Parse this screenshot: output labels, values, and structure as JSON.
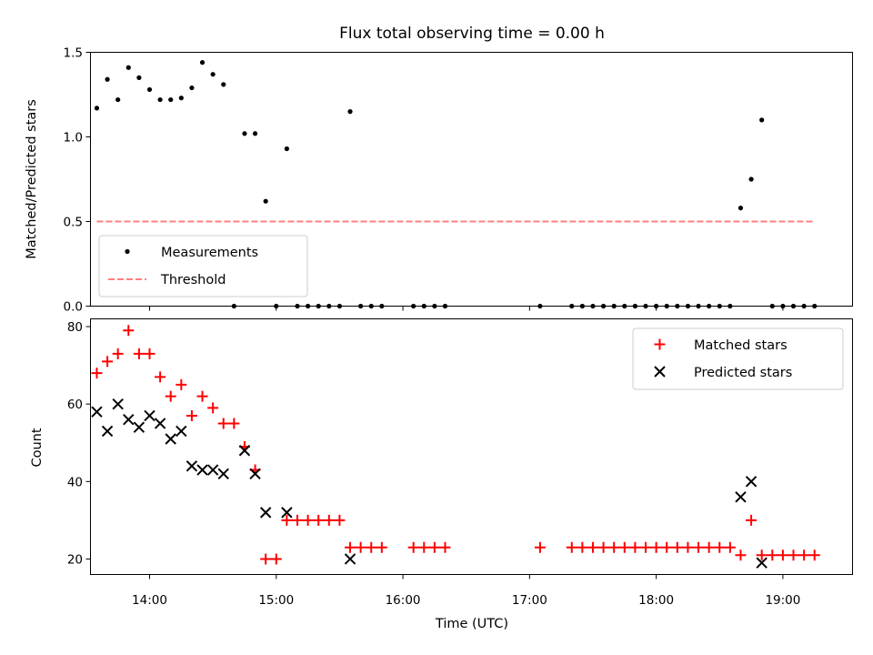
{
  "chart_data": [
    {
      "type": "scatter",
      "title": "Flux total observing time = 0.00 h",
      "xlabel": "",
      "ylabel": "Matched/Predicted stars",
      "xlim": [
        "13:32",
        "19:33"
      ],
      "ylim": [
        0,
        1.5
      ],
      "yticks": [
        0.0,
        0.5,
        1.0,
        1.5
      ],
      "ytick_labels": [
        "0.0",
        "0.5",
        "1.0",
        "1.5"
      ],
      "grid": false,
      "legend_position": "lower-left",
      "series": [
        {
          "name": "Measurements",
          "style": "points",
          "color": "#000000",
          "x": [
            "13:35",
            "13:40",
            "13:45",
            "13:50",
            "13:55",
            "14:00",
            "14:05",
            "14:10",
            "14:15",
            "14:20",
            "14:25",
            "14:30",
            "14:35",
            "14:40",
            "14:45",
            "14:50",
            "14:55",
            "15:00",
            "15:05",
            "15:10",
            "15:15",
            "15:20",
            "15:25",
            "15:30",
            "15:35",
            "15:40",
            "15:45",
            "15:50",
            "16:05",
            "16:10",
            "16:15",
            "16:20",
            "17:05",
            "17:20",
            "17:25",
            "17:30",
            "17:35",
            "17:40",
            "17:45",
            "17:50",
            "17:55",
            "18:00",
            "18:05",
            "18:10",
            "18:15",
            "18:20",
            "18:25",
            "18:30",
            "18:35",
            "18:40",
            "18:45",
            "18:50",
            "18:55",
            "19:00",
            "19:05",
            "19:10",
            "19:15"
          ],
          "y": [
            1.17,
            1.34,
            1.22,
            1.41,
            1.35,
            1.28,
            1.22,
            1.22,
            1.23,
            1.29,
            1.44,
            1.37,
            1.31,
            0.0,
            1.02,
            1.02,
            0.62,
            0.0,
            0.93,
            0.0,
            0.0,
            0.0,
            0.0,
            0.0,
            1.15,
            0.0,
            0.0,
            0.0,
            0.0,
            0.0,
            0.0,
            0.0,
            0.0,
            0.0,
            0.0,
            0.0,
            0.0,
            0.0,
            0.0,
            0.0,
            0.0,
            0.0,
            0.0,
            0.0,
            0.0,
            0.0,
            0.0,
            0.0,
            0.0,
            0.58,
            0.75,
            1.1,
            0.0,
            0.0,
            0.0,
            0.0,
            0.0
          ]
        },
        {
          "name": "Threshold",
          "style": "dashed-line",
          "color": "#ff7f7f",
          "x": [
            "13:35",
            "19:15"
          ],
          "y": [
            0.5,
            0.5
          ]
        }
      ]
    },
    {
      "type": "scatter",
      "title": "",
      "xlabel": "Time (UTC)",
      "ylabel": "Count",
      "xlim": [
        "13:32",
        "19:33"
      ],
      "ylim": [
        16,
        82
      ],
      "xticks": [
        "14:00",
        "15:00",
        "16:00",
        "17:00",
        "18:00",
        "19:00"
      ],
      "yticks": [
        20,
        40,
        60,
        80
      ],
      "ytick_labels": [
        "20",
        "40",
        "60",
        "80"
      ],
      "grid": false,
      "legend_position": "upper-right",
      "series": [
        {
          "name": "Matched stars",
          "marker": "+",
          "color": "#ff0000",
          "x": [
            "13:35",
            "13:40",
            "13:45",
            "13:50",
            "13:55",
            "14:00",
            "14:05",
            "14:10",
            "14:15",
            "14:20",
            "14:25",
            "14:30",
            "14:35",
            "14:40",
            "14:45",
            "14:50",
            "14:55",
            "15:00",
            "15:05",
            "15:10",
            "15:15",
            "15:20",
            "15:25",
            "15:30",
            "15:35",
            "15:40",
            "15:45",
            "15:50",
            "16:05",
            "16:10",
            "16:15",
            "16:20",
            "17:05",
            "17:20",
            "17:25",
            "17:30",
            "17:35",
            "17:40",
            "17:45",
            "17:50",
            "17:55",
            "18:00",
            "18:05",
            "18:10",
            "18:15",
            "18:20",
            "18:25",
            "18:30",
            "18:35",
            "18:40",
            "18:45",
            "18:50",
            "18:55",
            "19:00",
            "19:05",
            "19:10",
            "19:15"
          ],
          "y": [
            68,
            71,
            73,
            79,
            73,
            73,
            67,
            62,
            65,
            57,
            62,
            59,
            55,
            55,
            49,
            43,
            20,
            20,
            30,
            30,
            30,
            30,
            30,
            30,
            23,
            23,
            23,
            23,
            23,
            23,
            23,
            23,
            23,
            23,
            23,
            23,
            23,
            23,
            23,
            23,
            23,
            23,
            23,
            23,
            23,
            23,
            23,
            23,
            23,
            21,
            30,
            21,
            21,
            21,
            21,
            21,
            21
          ]
        },
        {
          "name": "Predicted stars",
          "marker": "x",
          "color": "#000000",
          "x": [
            "13:35",
            "13:40",
            "13:45",
            "13:50",
            "13:55",
            "14:00",
            "14:05",
            "14:10",
            "14:15",
            "14:20",
            "14:25",
            "14:30",
            "14:35",
            "14:45",
            "14:50",
            "14:55",
            "15:05",
            "15:35",
            "18:40",
            "18:45",
            "18:50"
          ],
          "y": [
            58,
            53,
            60,
            56,
            54,
            57,
            55,
            51,
            53,
            44,
            43,
            43,
            42,
            48,
            42,
            32,
            32,
            20,
            36,
            40,
            19
          ]
        }
      ]
    }
  ]
}
